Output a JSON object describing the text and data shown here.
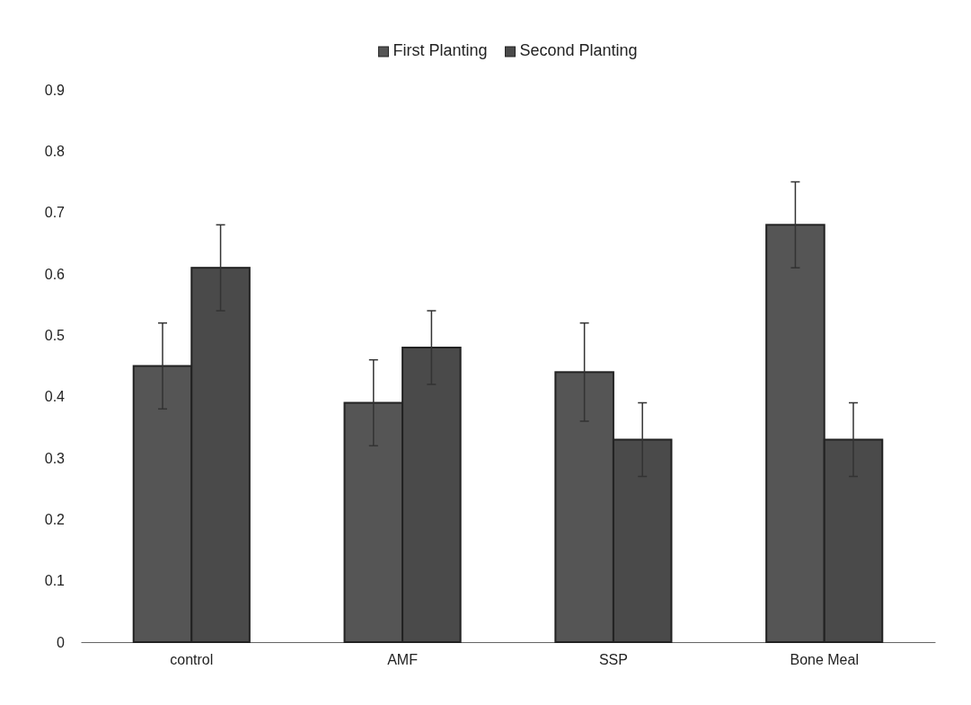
{
  "chart_data": {
    "type": "bar",
    "categories": [
      "control",
      "AMF",
      "SSP",
      "Bone Meal"
    ],
    "series": [
      {
        "name": "First Planting",
        "color": "#555555",
        "values": [
          0.45,
          0.39,
          0.44,
          0.68
        ],
        "errors": [
          0.07,
          0.07,
          0.08,
          0.07
        ]
      },
      {
        "name": "Second Planting",
        "color": "#4a4a4a",
        "values": [
          0.61,
          0.48,
          0.33,
          0.33
        ],
        "errors": [
          0.07,
          0.06,
          0.06,
          0.06
        ]
      }
    ],
    "ylim": [
      0,
      0.9
    ],
    "yticks": [
      {
        "value": 0,
        "label": "0"
      },
      0.1,
      0.2,
      0.3,
      0.4,
      0.5,
      0.6,
      0.7,
      0.8,
      0.9
    ],
    "grid": false,
    "legend": "top"
  }
}
